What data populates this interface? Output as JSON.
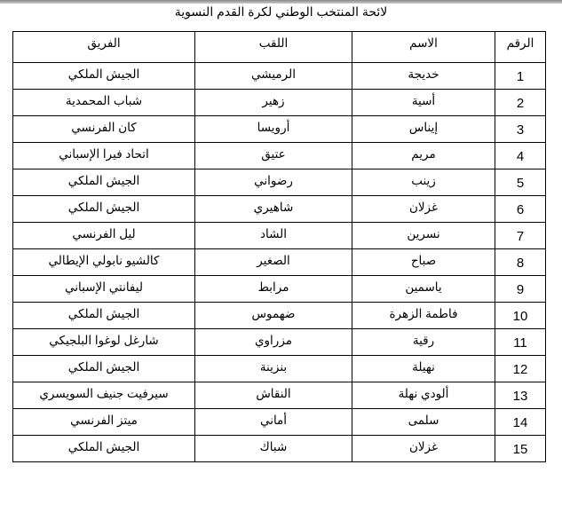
{
  "title": "لائحة المنتخب الوطني لكرة القدم النسوية",
  "headers": [
    "الرقم",
    "الاسم",
    "اللقب",
    "الفريق"
  ],
  "rows": [
    [
      "1",
      "خديجة",
      "الرميشي",
      "الجيش الملكي"
    ],
    [
      "2",
      "أسية",
      "زهير",
      "شباب المحمدية"
    ],
    [
      "3",
      "إيناس",
      "أرويسا",
      "كان الفرنسي"
    ],
    [
      "4",
      "مريم",
      "عتيق",
      "اتحاد فيرا الإسباني"
    ],
    [
      "5",
      "زينب",
      "رضواني",
      "الجيش الملكي"
    ],
    [
      "6",
      "غزلان",
      "شاهيري",
      "الجيش الملكي"
    ],
    [
      "7",
      "نسرين",
      "الشاد",
      "ليل الفرنسي"
    ],
    [
      "8",
      "صباح",
      "الصغير",
      "كالشيو نابولي الإيطالي"
    ],
    [
      "9",
      "ياسمين",
      "مرابط",
      "ليفانتي الإسباني"
    ],
    [
      "10",
      "فاطمة الزهرة",
      "ضهموس",
      "الجيش الملكي"
    ],
    [
      "11",
      "رقية",
      "مزراوي",
      "شارغل لوغوا البلجيكي"
    ],
    [
      "12",
      "نهيلة",
      "بنزينة",
      "الجيش الملكي"
    ],
    [
      "13",
      "ألودي نهلة",
      "النقاش",
      "سيرفيت جنيف السويسري"
    ],
    [
      "14",
      "سلمى",
      "أماني",
      "ميتز الفرنسي"
    ],
    [
      "15",
      "غزلان",
      "شباك",
      "الجيش الملكي"
    ]
  ]
}
